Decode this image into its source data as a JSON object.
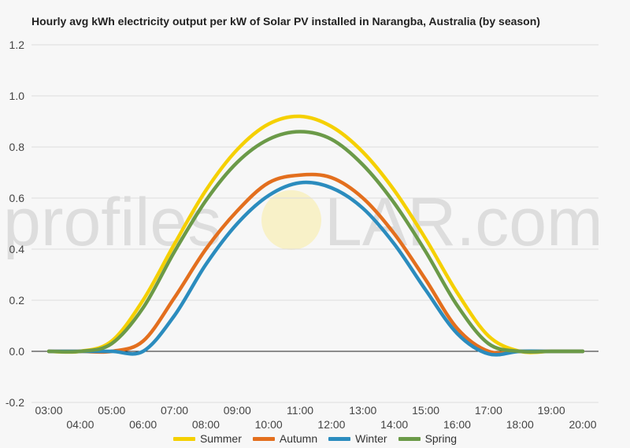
{
  "chart_data": {
    "type": "line",
    "title": "Hourly avg kWh electricity output per kW of Solar PV installed in Narangba, Australia (by season)",
    "xlabel": "",
    "ylabel": "",
    "ylim": [
      -0.2,
      1.2
    ],
    "yticks": [
      "-0.2",
      "0.0",
      "0.2",
      "0.4",
      "0.6",
      "0.8",
      "1.0",
      "1.2"
    ],
    "xlim": [
      3,
      20
    ],
    "x_ticks_top": [
      "03:00",
      "05:00",
      "07:00",
      "09:00",
      "11:00",
      "13:00",
      "15:00",
      "17:00",
      "19:00"
    ],
    "x_ticks_bottom": [
      "04:00",
      "06:00",
      "08:00",
      "10:00",
      "12:00",
      "14:00",
      "16:00",
      "18:00",
      "20:00"
    ],
    "grid": true,
    "legend_position": "bottom",
    "x": [
      3,
      4,
      5,
      6,
      7,
      8,
      9,
      10,
      11,
      12,
      13,
      14,
      15,
      16,
      17,
      18,
      19,
      20
    ],
    "series": [
      {
        "name": "Summer",
        "color": "#f5d000",
        "values": [
          0,
          0,
          0.04,
          0.2,
          0.42,
          0.63,
          0.79,
          0.89,
          0.92,
          0.88,
          0.78,
          0.63,
          0.44,
          0.23,
          0.06,
          0,
          0,
          0
        ]
      },
      {
        "name": "Autumn",
        "color": "#e36f1e",
        "values": [
          0,
          0,
          0,
          0.04,
          0.21,
          0.4,
          0.55,
          0.66,
          0.69,
          0.68,
          0.6,
          0.46,
          0.28,
          0.09,
          0,
          0,
          0,
          0
        ]
      },
      {
        "name": "Winter",
        "color": "#2b8cbe",
        "values": [
          0,
          0,
          0,
          0,
          0.14,
          0.34,
          0.5,
          0.61,
          0.66,
          0.64,
          0.56,
          0.42,
          0.24,
          0.07,
          -0.01,
          0,
          0,
          0
        ]
      },
      {
        "name": "Spring",
        "color": "#6b9a48",
        "values": [
          0,
          0,
          0.03,
          0.17,
          0.39,
          0.59,
          0.74,
          0.83,
          0.86,
          0.83,
          0.73,
          0.58,
          0.39,
          0.18,
          0.03,
          0,
          0,
          0
        ]
      }
    ]
  },
  "watermark": {
    "text_left": "profiles",
    "text_right": "LAR.com",
    "text_color": "#d9d9d9",
    "sun_color": "#f7efc2"
  }
}
